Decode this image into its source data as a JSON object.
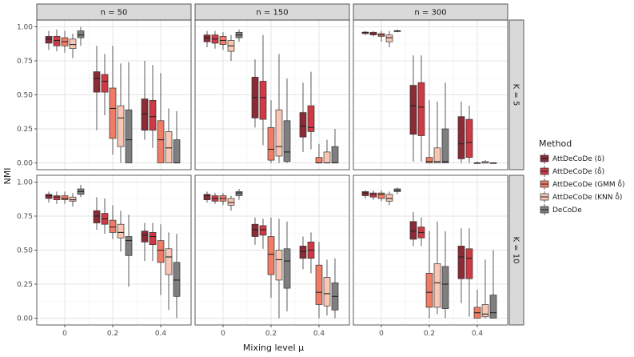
{
  "chart_data": {
    "type": "boxplot",
    "xlabel": "Mixing level μ",
    "ylabel": "NMI",
    "x_categories": [
      "0",
      "0.2",
      "0.4"
    ],
    "ylim": [
      -0.05,
      1.05
    ],
    "y_ticks": [
      "0.00",
      "0.25",
      "0.50",
      "0.75",
      "1.00"
    ],
    "column_strips": [
      "n = 50",
      "n = 150",
      "n = 300"
    ],
    "row_strips": [
      "K = 5",
      "K = 10"
    ],
    "legend": {
      "title": "Method",
      "entries": [
        {
          "label": "AttDeCoDe (δ)",
          "color": "#8c2a35"
        },
        {
          "label": "AttDeCoDe (δ̂)",
          "color": "#cf3a45"
        },
        {
          "label": "AttDeCoDe (GMM δ̂)",
          "color": "#f07c66"
        },
        {
          "label": "AttDeCoDe (KNN δ̂)",
          "color": "#f8c6b2"
        },
        {
          "label": "DeCoDe",
          "color": "#7f7f7f"
        }
      ]
    },
    "panels": [
      {
        "row": 0,
        "col": 0,
        "boxes": [
          [
            [
              0.83,
              0.88,
              0.91,
              0.93,
              0.97
            ],
            [
              0.82,
              0.86,
              0.9,
              0.93,
              0.98
            ],
            [
              0.81,
              0.86,
              0.89,
              0.92,
              0.97
            ],
            [
              0.77,
              0.84,
              0.87,
              0.91,
              0.95
            ],
            [
              0.86,
              0.92,
              0.94,
              0.97,
              1.0
            ]
          ],
          [
            [
              0.24,
              0.52,
              0.62,
              0.67,
              0.86
            ],
            [
              0.35,
              0.52,
              0.6,
              0.65,
              0.8
            ],
            [
              0.06,
              0.18,
              0.4,
              0.55,
              0.86
            ],
            [
              0.0,
              0.12,
              0.33,
              0.42,
              0.73
            ],
            [
              0.0,
              0.0,
              0.17,
              0.39,
              0.74
            ]
          ],
          [
            [
              0.17,
              0.24,
              0.36,
              0.47,
              0.75
            ],
            [
              0.11,
              0.24,
              0.34,
              0.46,
              0.72
            ],
            [
              0.0,
              0.0,
              0.17,
              0.31,
              0.66
            ],
            [
              0.0,
              0.0,
              0.11,
              0.23,
              0.4
            ],
            [
              0.0,
              0.0,
              0.0,
              0.17,
              0.38
            ]
          ]
        ]
      },
      {
        "row": 0,
        "col": 1,
        "boxes": [
          [
            [
              0.85,
              0.89,
              0.92,
              0.94,
              0.97
            ],
            [
              0.84,
              0.88,
              0.91,
              0.94,
              0.97
            ],
            [
              0.83,
              0.87,
              0.9,
              0.93,
              0.96
            ],
            [
              0.75,
              0.82,
              0.86,
              0.9,
              0.94
            ],
            [
              0.89,
              0.92,
              0.94,
              0.96,
              0.98
            ]
          ],
          [
            [
              0.26,
              0.33,
              0.48,
              0.63,
              0.76
            ],
            [
              0.13,
              0.32,
              0.48,
              0.6,
              0.94
            ],
            [
              0.0,
              0.02,
              0.1,
              0.26,
              0.46
            ],
            [
              0.0,
              0.05,
              0.12,
              0.39,
              0.8
            ],
            [
              0.0,
              0.01,
              0.08,
              0.31,
              0.62
            ]
          ],
          [
            [
              0.08,
              0.19,
              0.27,
              0.37,
              0.59
            ],
            [
              0.1,
              0.23,
              0.26,
              0.42,
              0.67
            ],
            [
              0.0,
              0.0,
              0.0,
              0.04,
              0.14
            ],
            [
              0.0,
              0.0,
              0.0,
              0.08,
              0.17
            ],
            [
              0.0,
              0.0,
              0.0,
              0.12,
              0.25
            ]
          ]
        ]
      },
      {
        "row": 0,
        "col": 2,
        "boxes": [
          [
            [
              0.94,
              0.95,
              0.96,
              0.96,
              0.97
            ],
            [
              0.93,
              0.94,
              0.95,
              0.96,
              0.97
            ],
            [
              0.89,
              0.93,
              0.94,
              0.95,
              0.97
            ],
            [
              0.85,
              0.89,
              0.92,
              0.94,
              0.97
            ],
            [
              0.96,
              0.97,
              0.97,
              0.97,
              0.98
            ]
          ],
          [
            [
              0.01,
              0.21,
              0.42,
              0.57,
              0.79
            ],
            [
              0.01,
              0.2,
              0.41,
              0.59,
              0.79
            ],
            [
              0.0,
              0.0,
              0.01,
              0.04,
              0.46
            ],
            [
              0.0,
              0.0,
              0.01,
              0.11,
              0.45
            ],
            [
              0.0,
              0.0,
              0.01,
              0.25,
              0.59
            ]
          ],
          [
            [
              0.0,
              0.03,
              0.14,
              0.34,
              0.45
            ],
            [
              0.0,
              0.04,
              0.15,
              0.32,
              0.42
            ],
            [
              0.0,
              0.0,
              0.0,
              0.0,
              0.01
            ],
            [
              0.0,
              0.0,
              0.0,
              0.01,
              0.02
            ],
            [
              0.0,
              0.0,
              0.0,
              0.0,
              0.0
            ]
          ]
        ]
      },
      {
        "row": 1,
        "col": 0,
        "boxes": [
          [
            [
              0.85,
              0.88,
              0.9,
              0.91,
              0.93
            ],
            [
              0.84,
              0.87,
              0.89,
              0.9,
              0.93
            ],
            [
              0.84,
              0.87,
              0.88,
              0.9,
              0.93
            ],
            [
              0.82,
              0.86,
              0.87,
              0.89,
              0.92
            ],
            [
              0.89,
              0.91,
              0.93,
              0.95,
              0.98
            ]
          ],
          [
            [
              0.65,
              0.7,
              0.75,
              0.79,
              0.89
            ],
            [
              0.62,
              0.69,
              0.73,
              0.77,
              0.88
            ],
            [
              0.58,
              0.63,
              0.67,
              0.72,
              0.83
            ],
            [
              0.49,
              0.59,
              0.63,
              0.69,
              0.79
            ],
            [
              0.23,
              0.46,
              0.57,
              0.6,
              0.76
            ]
          ],
          [
            [
              0.42,
              0.56,
              0.61,
              0.64,
              0.7
            ],
            [
              0.42,
              0.54,
              0.6,
              0.63,
              0.7
            ],
            [
              0.17,
              0.41,
              0.5,
              0.57,
              0.69
            ],
            [
              0.06,
              0.32,
              0.45,
              0.51,
              0.63
            ],
            [
              0.0,
              0.16,
              0.28,
              0.41,
              0.62
            ]
          ]
        ]
      },
      {
        "row": 1,
        "col": 1,
        "boxes": [
          [
            [
              0.85,
              0.87,
              0.9,
              0.91,
              0.93
            ],
            [
              0.84,
              0.86,
              0.88,
              0.9,
              0.92
            ],
            [
              0.83,
              0.86,
              0.88,
              0.9,
              0.92
            ],
            [
              0.79,
              0.83,
              0.85,
              0.88,
              0.9
            ],
            [
              0.87,
              0.9,
              0.92,
              0.93,
              0.95
            ]
          ],
          [
            [
              0.54,
              0.6,
              0.65,
              0.69,
              0.74
            ],
            [
              0.51,
              0.61,
              0.65,
              0.68,
              0.73
            ],
            [
              0.15,
              0.32,
              0.47,
              0.6,
              0.74
            ],
            [
              0.0,
              0.28,
              0.43,
              0.5,
              0.73
            ],
            [
              0.05,
              0.22,
              0.42,
              0.51,
              0.71
            ]
          ],
          [
            [
              0.36,
              0.44,
              0.49,
              0.53,
              0.6
            ],
            [
              0.33,
              0.44,
              0.5,
              0.56,
              0.63
            ],
            [
              0.0,
              0.1,
              0.19,
              0.39,
              0.56
            ],
            [
              0.02,
              0.09,
              0.18,
              0.3,
              0.43
            ],
            [
              0.0,
              0.06,
              0.16,
              0.26,
              0.44
            ]
          ]
        ]
      },
      {
        "row": 1,
        "col": 2,
        "boxes": [
          [
            [
              0.88,
              0.9,
              0.92,
              0.93,
              0.94
            ],
            [
              0.87,
              0.89,
              0.91,
              0.92,
              0.94
            ],
            [
              0.86,
              0.88,
              0.91,
              0.92,
              0.94
            ],
            [
              0.83,
              0.86,
              0.88,
              0.91,
              0.93
            ],
            [
              0.91,
              0.93,
              0.94,
              0.95,
              0.96
            ]
          ],
          [
            [
              0.53,
              0.58,
              0.64,
              0.71,
              0.78
            ],
            [
              0.53,
              0.59,
              0.63,
              0.67,
              0.74
            ],
            [
              0.0,
              0.08,
              0.19,
              0.33,
              0.64
            ],
            [
              0.03,
              0.08,
              0.26,
              0.4,
              0.71
            ],
            [
              0.0,
              0.07,
              0.25,
              0.38,
              0.64
            ]
          ],
          [
            [
              0.11,
              0.29,
              0.45,
              0.53,
              0.66
            ],
            [
              0.01,
              0.29,
              0.44,
              0.51,
              0.66
            ],
            [
              0.0,
              0.0,
              0.04,
              0.08,
              0.21
            ],
            [
              0.0,
              0.01,
              0.03,
              0.1,
              0.43
            ],
            [
              0.0,
              0.0,
              0.04,
              0.17,
              0.5
            ]
          ]
        ]
      }
    ]
  }
}
